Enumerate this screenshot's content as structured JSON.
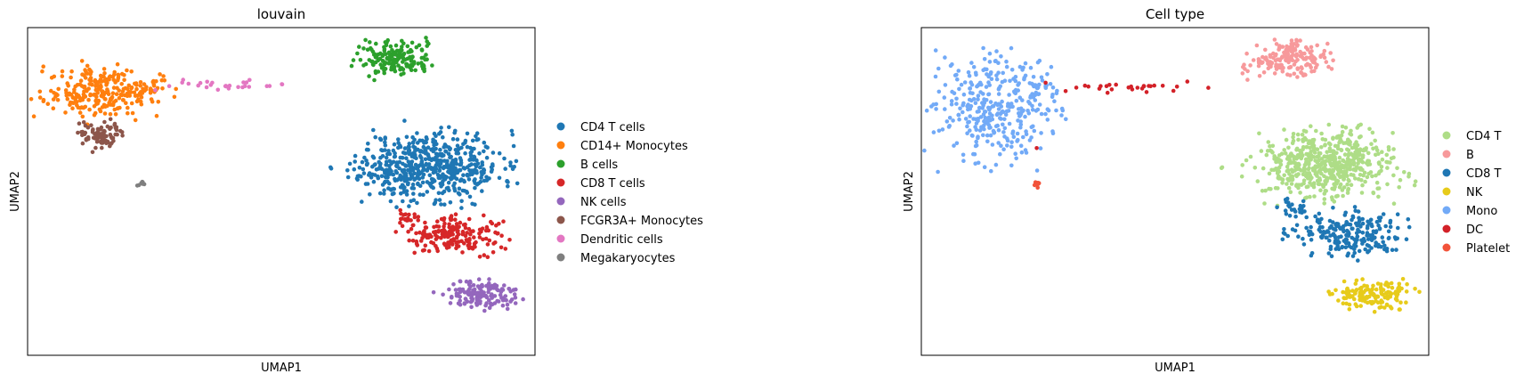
{
  "chart_data": [
    {
      "type": "scatter",
      "title": "louvain",
      "xlabel": "UMAP1",
      "ylabel": "UMAP2",
      "xlim": [
        -4,
        17
      ],
      "ylim": [
        -3,
        18
      ],
      "grid": false,
      "legend_placement": "right",
      "series": [
        {
          "name": "CD4 T cells",
          "color": "#1f77b4",
          "clusters": [
            {
              "cx": 12.8,
              "cy": 9.2,
              "sx": 1.4,
              "sy": 1.1,
              "n": 520,
              "seed": 11
            },
            {
              "cx": 11.0,
              "cy": 8.6,
              "sx": 0.8,
              "sy": 0.8,
              "n": 60,
              "seed": 12
            },
            {
              "cx": 8.7,
              "cy": 9.0,
              "sx": 0.1,
              "sy": 0.1,
              "n": 2,
              "seed": 13
            }
          ]
        },
        {
          "name": "CD14+ Monocytes",
          "color": "#ff7f0e",
          "clusters": [
            {
              "cx": -1.1,
              "cy": 13.8,
              "sx": 1.1,
              "sy": 0.8,
              "n": 240,
              "seed": 21
            },
            {
              "cx": 0.8,
              "cy": 14.0,
              "sx": 0.6,
              "sy": 0.4,
              "n": 40,
              "seed": 22
            }
          ]
        },
        {
          "name": "B cells",
          "color": "#2ca02c",
          "clusters": [
            {
              "cx": 11.2,
              "cy": 16.0,
              "sx": 0.8,
              "sy": 0.55,
              "n": 170,
              "seed": 31
            }
          ]
        },
        {
          "name": "CD8 T cells",
          "color": "#d62728",
          "clusters": [
            {
              "cx": 13.7,
              "cy": 4.7,
              "sx": 1.05,
              "sy": 0.55,
              "n": 190,
              "seed": 41
            },
            {
              "cx": 11.6,
              "cy": 5.8,
              "sx": 0.3,
              "sy": 0.25,
              "n": 20,
              "seed": 42
            }
          ]
        },
        {
          "name": "NK cells",
          "color": "#9467bd",
          "clusters": [
            {
              "cx": 14.7,
              "cy": 0.9,
              "sx": 0.75,
              "sy": 0.45,
              "n": 150,
              "seed": 51
            }
          ]
        },
        {
          "name": "FCGR3A+ Monocytes",
          "color": "#8c564b",
          "clusters": [
            {
              "cx": -1.0,
              "cy": 11.2,
              "sx": 0.5,
              "sy": 0.5,
              "n": 85,
              "seed": 61
            }
          ]
        },
        {
          "name": "Dendritic cells",
          "color": "#e377c2",
          "clusters": [
            {
              "cx": 4.7,
              "cy": 14.3,
              "sx": 1.6,
              "sy": 0.15,
              "n": 28,
              "seed": 71
            }
          ]
        },
        {
          "name": "Megakaryocytes",
          "color": "#7f7f7f",
          "clusters": [
            {
              "cx": 0.7,
              "cy": 8.0,
              "sx": 0.08,
              "sy": 0.12,
              "n": 8,
              "seed": 81
            }
          ]
        }
      ]
    },
    {
      "type": "scatter",
      "title": "Cell type",
      "xlabel": "UMAP1",
      "ylabel": "UMAP2",
      "xlim": [
        -4,
        17
      ],
      "ylim": [
        -3,
        18
      ],
      "grid": false,
      "legend_placement": "right",
      "series": [
        {
          "name": "CD4 T",
          "color": "#aedd87",
          "clusters": [
            {
              "cx": 12.8,
              "cy": 9.2,
              "sx": 1.45,
              "sy": 1.05,
              "n": 560,
              "seed": 111
            },
            {
              "cx": 8.6,
              "cy": 9.0,
              "sx": 0.1,
              "sy": 0.1,
              "n": 2,
              "seed": 112
            }
          ]
        },
        {
          "name": "B",
          "color": "#f7999b",
          "clusters": [
            {
              "cx": 11.2,
              "cy": 16.0,
              "sx": 0.8,
              "sy": 0.55,
              "n": 170,
              "seed": 121
            }
          ]
        },
        {
          "name": "CD8 T",
          "color": "#1f77b4",
          "clusters": [
            {
              "cx": 13.6,
              "cy": 4.8,
              "sx": 1.1,
              "sy": 0.7,
              "n": 210,
              "seed": 131
            },
            {
              "cx": 11.5,
              "cy": 6.4,
              "sx": 0.4,
              "sy": 0.3,
              "n": 25,
              "seed": 132
            }
          ]
        },
        {
          "name": "NK",
          "color": "#e7cb1a",
          "clusters": [
            {
              "cx": 14.7,
              "cy": 0.9,
              "sx": 0.75,
              "sy": 0.45,
              "n": 150,
              "seed": 141
            }
          ]
        },
        {
          "name": "Mono",
          "color": "#72aaf7",
          "clusters": [
            {
              "cx": -1.1,
              "cy": 12.8,
              "sx": 1.2,
              "sy": 1.6,
              "n": 330,
              "seed": 151
            },
            {
              "cx": 0.9,
              "cy": 14.0,
              "sx": 0.5,
              "sy": 0.4,
              "n": 30,
              "seed": 152
            }
          ]
        },
        {
          "name": "DC",
          "color": "#d32128",
          "clusters": [
            {
              "cx": 4.6,
              "cy": 14.2,
              "sx": 1.6,
              "sy": 0.15,
              "n": 28,
              "seed": 161
            },
            {
              "cx": 0.7,
              "cy": 10.3,
              "sx": 0.05,
              "sy": 0.05,
              "n": 1,
              "seed": 162
            }
          ]
        },
        {
          "name": "Platelet",
          "color": "#f2533a",
          "clusters": [
            {
              "cx": 0.8,
              "cy": 8.0,
              "sx": 0.08,
              "sy": 0.12,
              "n": 8,
              "seed": 171
            }
          ]
        }
      ]
    }
  ]
}
